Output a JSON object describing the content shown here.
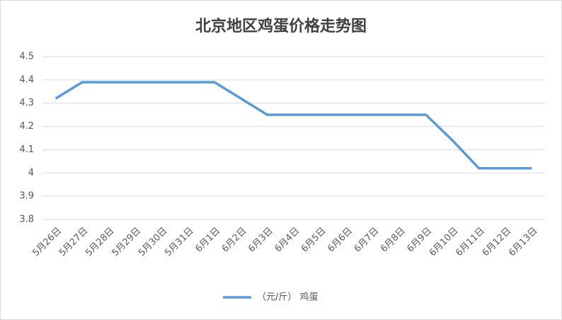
{
  "chart_data": {
    "type": "line",
    "title": "北京地区鸡蛋价格走势图",
    "categories": [
      "5月26日",
      "5月27日",
      "5月28日",
      "5月29日",
      "5月30日",
      "5月31日",
      "6月1日",
      "6月2日",
      "6月3日",
      "6月4日",
      "6月5日",
      "6月6日",
      "6月7日",
      "6月8日",
      "6月9日",
      "6月10日",
      "6月11日",
      "6月12日",
      "6月13日"
    ],
    "series": [
      {
        "name": "（元/斤） 鸡蛋",
        "color": "#5b9bd5",
        "values": [
          4.32,
          4.39,
          4.39,
          4.39,
          4.39,
          4.39,
          4.39,
          4.32,
          4.25,
          4.25,
          4.25,
          4.25,
          4.25,
          4.25,
          4.25,
          4.14,
          4.02,
          4.02,
          4.02
        ]
      }
    ],
    "ylim": [
      3.8,
      4.5
    ],
    "yticks": [
      3.8,
      3.9,
      4,
      4.1,
      4.2,
      4.3,
      4.4,
      4.5
    ],
    "grid": true,
    "legend": "bottom"
  }
}
